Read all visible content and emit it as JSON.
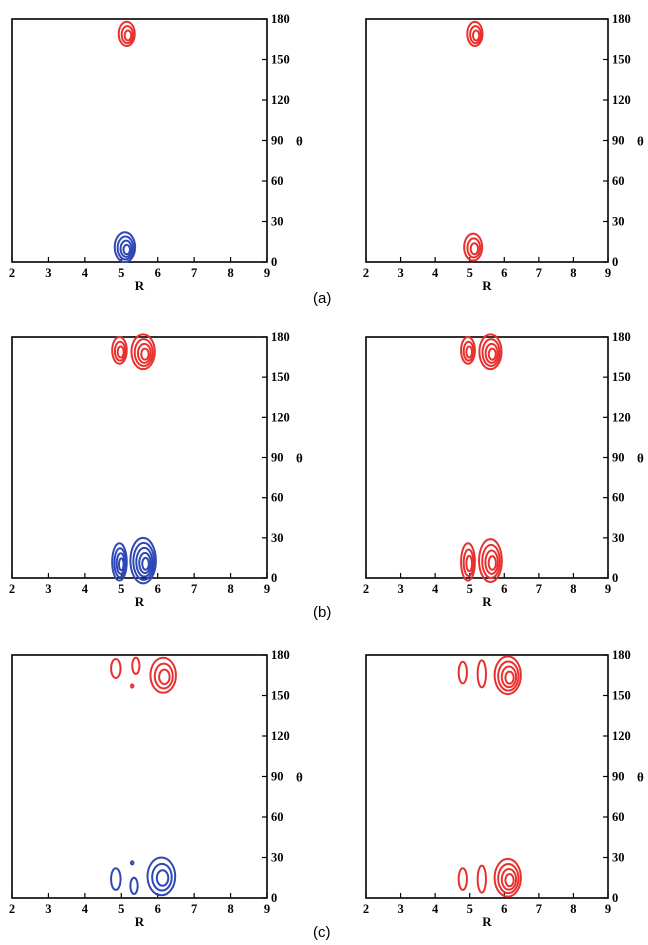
{
  "figure": {
    "rows": [
      {
        "tag": "(a)"
      },
      {
        "tag": "(b)"
      },
      {
        "tag": "(c)"
      }
    ]
  },
  "colors": {
    "positive": "#e8312f",
    "negative": "#2f48b5"
  },
  "chart_data": [
    {
      "type": "contour",
      "row": 0,
      "col": 0,
      "title": "",
      "xlabel": "R",
      "ylabel": "θ",
      "xlim": [
        2,
        9
      ],
      "ylim": [
        0,
        180
      ],
      "xticks": [
        2,
        3,
        4,
        5,
        6,
        7,
        8,
        9
      ],
      "yticks": [
        0,
        30,
        60,
        90,
        120,
        150,
        180
      ],
      "grid": false,
      "features": [
        {
          "x": 5.15,
          "y": 169,
          "rx": 0.22,
          "ry": 9,
          "levels": 3,
          "color": "positive"
        },
        {
          "x": 5.1,
          "y": 11,
          "rx": 0.28,
          "ry": 11,
          "levels": 4,
          "color": "negative"
        }
      ]
    },
    {
      "type": "contour",
      "row": 0,
      "col": 1,
      "title": "",
      "xlabel": "R",
      "ylabel": "θ",
      "xlim": [
        2,
        9
      ],
      "ylim": [
        0,
        180
      ],
      "xticks": [
        2,
        3,
        4,
        5,
        6,
        7,
        8,
        9
      ],
      "yticks": [
        0,
        30,
        60,
        90,
        120,
        150,
        180
      ],
      "grid": false,
      "features": [
        {
          "x": 5.15,
          "y": 169,
          "rx": 0.22,
          "ry": 9,
          "levels": 3,
          "color": "positive"
        },
        {
          "x": 5.1,
          "y": 11,
          "rx": 0.26,
          "ry": 10,
          "levels": 3,
          "color": "positive"
        }
      ]
    },
    {
      "type": "contour",
      "row": 1,
      "col": 0,
      "title": "",
      "xlabel": "R",
      "ylabel": "θ",
      "xlim": [
        2,
        9
      ],
      "ylim": [
        0,
        180
      ],
      "xticks": [
        2,
        3,
        4,
        5,
        6,
        7,
        8,
        9
      ],
      "yticks": [
        0,
        30,
        60,
        90,
        120,
        150,
        180
      ],
      "grid": false,
      "features": [
        {
          "x": 4.95,
          "y": 170,
          "rx": 0.2,
          "ry": 10,
          "levels": 3,
          "color": "positive"
        },
        {
          "x": 5.6,
          "y": 169,
          "rx": 0.32,
          "ry": 13,
          "levels": 4,
          "color": "positive"
        },
        {
          "x": 4.95,
          "y": 12,
          "rx": 0.2,
          "ry": 14,
          "levels": 4,
          "color": "negative"
        },
        {
          "x": 5.6,
          "y": 13,
          "rx": 0.35,
          "ry": 17,
          "levels": 5,
          "color": "negative"
        }
      ]
    },
    {
      "type": "contour",
      "row": 1,
      "col": 1,
      "title": "",
      "xlabel": "R",
      "ylabel": "θ",
      "xlim": [
        2,
        9
      ],
      "ylim": [
        0,
        180
      ],
      "xticks": [
        2,
        3,
        4,
        5,
        6,
        7,
        8,
        9
      ],
      "yticks": [
        0,
        30,
        60,
        90,
        120,
        150,
        180
      ],
      "grid": false,
      "features": [
        {
          "x": 4.95,
          "y": 170,
          "rx": 0.2,
          "ry": 10,
          "levels": 3,
          "color": "positive"
        },
        {
          "x": 5.6,
          "y": 169,
          "rx": 0.32,
          "ry": 13,
          "levels": 4,
          "color": "positive"
        },
        {
          "x": 4.95,
          "y": 12,
          "rx": 0.2,
          "ry": 14,
          "levels": 3,
          "color": "positive"
        },
        {
          "x": 5.6,
          "y": 13,
          "rx": 0.33,
          "ry": 16,
          "levels": 4,
          "color": "positive"
        }
      ]
    },
    {
      "type": "contour",
      "row": 2,
      "col": 0,
      "title": "",
      "xlabel": "R",
      "ylabel": "θ",
      "xlim": [
        2,
        9
      ],
      "ylim": [
        0,
        180
      ],
      "xticks": [
        2,
        3,
        4,
        5,
        6,
        7,
        8,
        9
      ],
      "yticks": [
        0,
        30,
        60,
        90,
        120,
        150,
        180
      ],
      "grid": false,
      "features": [
        {
          "x": 4.85,
          "y": 170,
          "rx": 0.13,
          "ry": 7,
          "levels": 1,
          "color": "positive"
        },
        {
          "x": 5.4,
          "y": 172,
          "rx": 0.1,
          "ry": 6,
          "levels": 1,
          "color": "positive"
        },
        {
          "x": 5.3,
          "y": 157,
          "rx": 0.03,
          "ry": 1.2,
          "levels": 1,
          "color": "positive"
        },
        {
          "x": 6.15,
          "y": 165,
          "rx": 0.35,
          "ry": 13,
          "levels": 3,
          "color": "positive"
        },
        {
          "x": 4.85,
          "y": 14,
          "rx": 0.13,
          "ry": 8,
          "levels": 1,
          "color": "negative"
        },
        {
          "x": 5.35,
          "y": 9,
          "rx": 0.1,
          "ry": 6,
          "levels": 1,
          "color": "negative"
        },
        {
          "x": 5.3,
          "y": 26,
          "rx": 0.03,
          "ry": 1.2,
          "levels": 1,
          "color": "negative"
        },
        {
          "x": 6.1,
          "y": 16,
          "rx": 0.38,
          "ry": 14,
          "levels": 3,
          "color": "negative"
        }
      ]
    },
    {
      "type": "contour",
      "row": 2,
      "col": 1,
      "title": "",
      "xlabel": "R",
      "ylabel": "θ",
      "xlim": [
        2,
        9
      ],
      "ylim": [
        0,
        180
      ],
      "xticks": [
        2,
        3,
        4,
        5,
        6,
        7,
        8,
        9
      ],
      "yticks": [
        0,
        30,
        60,
        90,
        120,
        150,
        180
      ],
      "grid": false,
      "features": [
        {
          "x": 4.8,
          "y": 167,
          "rx": 0.12,
          "ry": 8,
          "levels": 1,
          "color": "positive"
        },
        {
          "x": 5.35,
          "y": 166,
          "rx": 0.12,
          "ry": 10,
          "levels": 1,
          "color": "positive"
        },
        {
          "x": 6.1,
          "y": 165,
          "rx": 0.38,
          "ry": 14,
          "levels": 4,
          "color": "positive"
        },
        {
          "x": 4.8,
          "y": 14,
          "rx": 0.12,
          "ry": 8,
          "levels": 1,
          "color": "positive"
        },
        {
          "x": 5.35,
          "y": 14,
          "rx": 0.12,
          "ry": 10,
          "levels": 1,
          "color": "positive"
        },
        {
          "x": 6.1,
          "y": 15,
          "rx": 0.38,
          "ry": 14,
          "levels": 4,
          "color": "positive"
        }
      ]
    }
  ]
}
